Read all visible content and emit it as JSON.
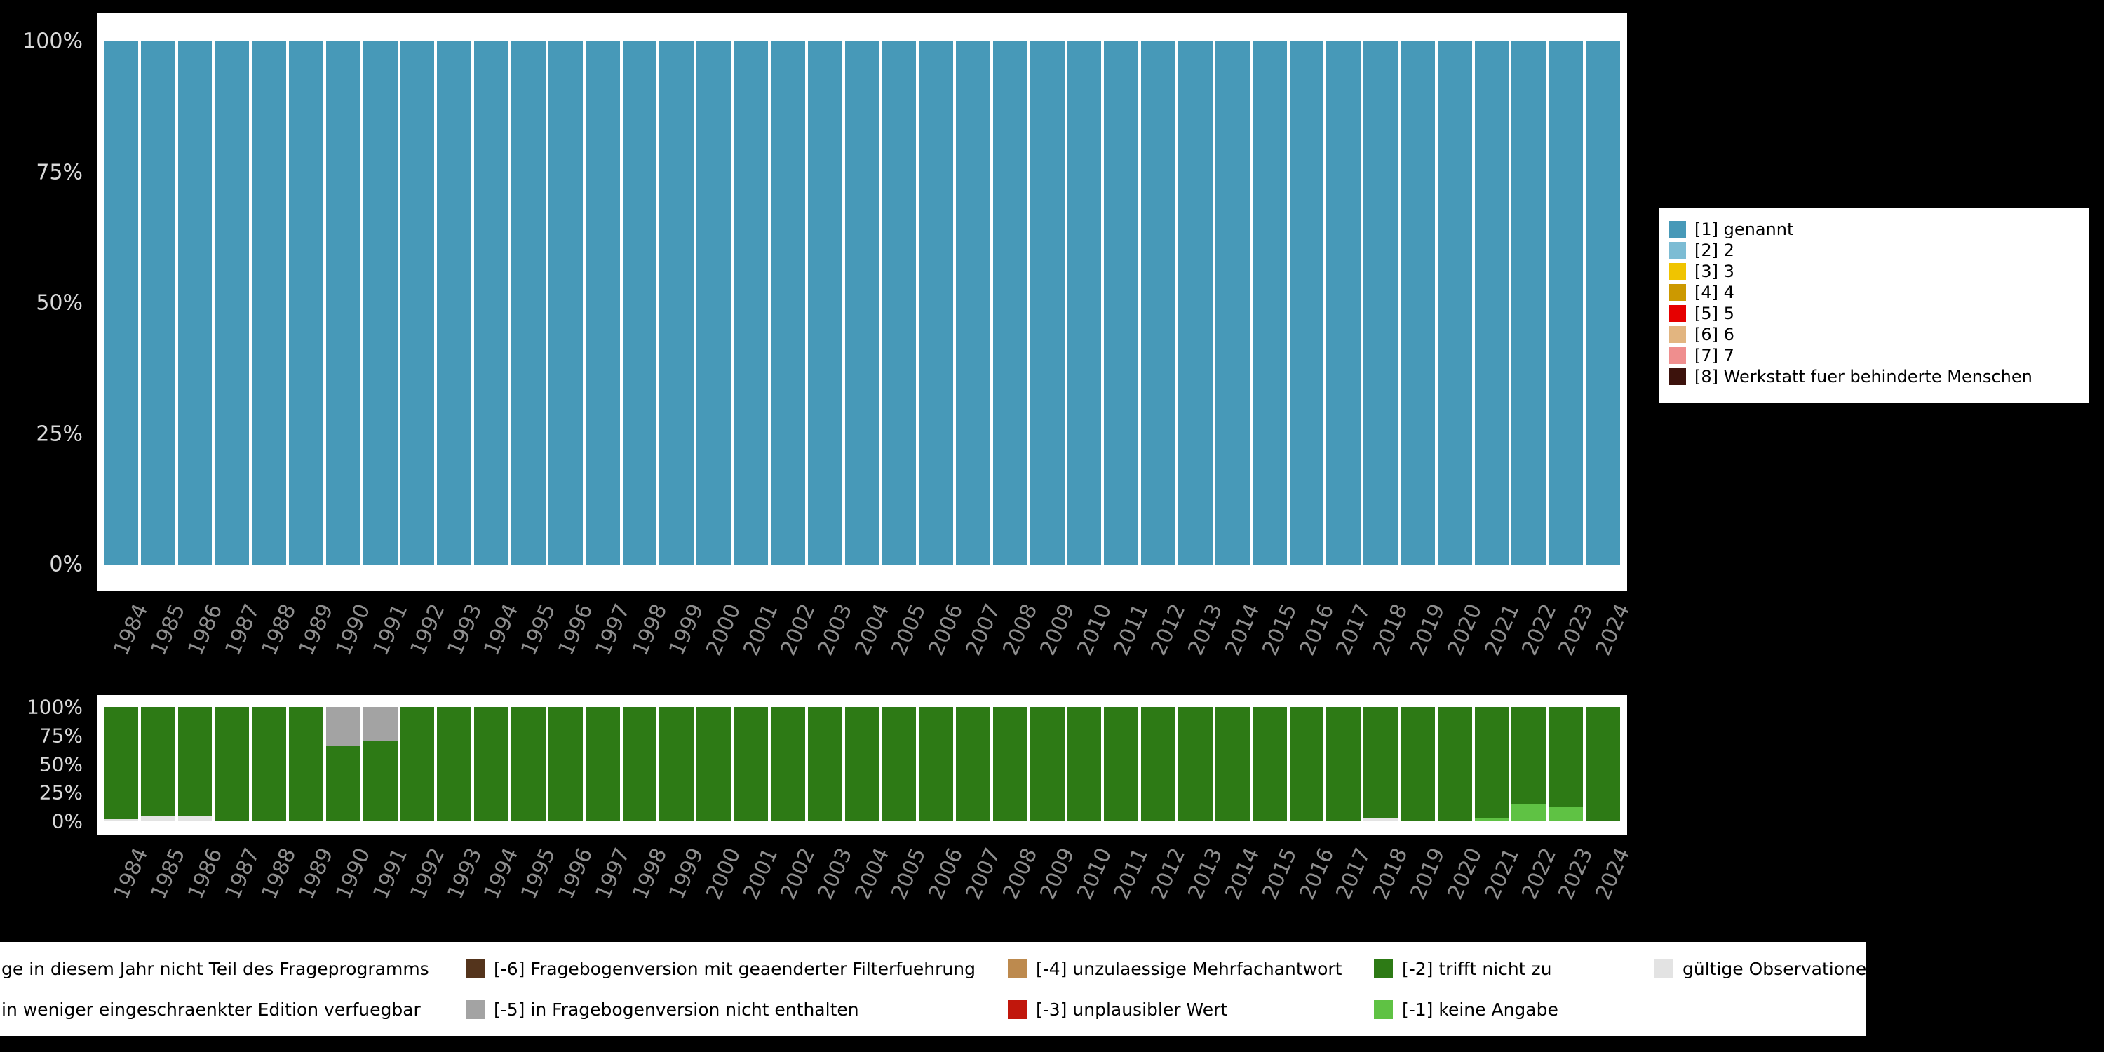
{
  "page": {
    "background": "#000000",
    "panel_background": "#ffffff"
  },
  "colors": {
    "s1": "#4799b8",
    "s2": "#7cbcd4",
    "s3": "#f0c400",
    "s4": "#cc9900",
    "s5": "#e60000",
    "s6": "#e2b580",
    "s7": "#ef8e8e",
    "s8": "#3c120c",
    "m1": "#5fc244",
    "m2": "#2d7a15",
    "m3": "#c1170c",
    "m4": "#bd8a4e",
    "m5": "#a3a3a3",
    "m6": "#54341c",
    "valid": "#e3e3e3",
    "y_axis_text": "#d9d9d9",
    "x_axis_text": "#8f8f8f"
  },
  "chart_data": [
    {
      "type": "bar",
      "stacked": true,
      "title": "",
      "xlabel": "",
      "ylabel": "",
      "ylim": [
        0,
        100
      ],
      "grid": false,
      "legend_position": "right",
      "y_ticks": [
        "100%",
        "75%",
        "50%",
        "25%",
        "0%"
      ],
      "categories": [
        "1984",
        "1985",
        "1986",
        "1987",
        "1988",
        "1989",
        "1990",
        "1991",
        "1992",
        "1993",
        "1994",
        "1995",
        "1996",
        "1997",
        "1998",
        "1999",
        "2000",
        "2001",
        "2002",
        "2003",
        "2004",
        "2005",
        "2006",
        "2007",
        "2008",
        "2009",
        "2010",
        "2011",
        "2012",
        "2013",
        "2014",
        "2015",
        "2016",
        "2017",
        "2018",
        "2019",
        "2020",
        "2021",
        "2022",
        "2023",
        "2024"
      ],
      "series": [
        {
          "name": "[1] genannt",
          "color_key": "s1",
          "values": [
            100,
            100,
            100,
            100,
            100,
            100,
            100,
            100,
            100,
            100,
            100,
            100,
            100,
            100,
            100,
            100,
            100,
            100,
            100,
            100,
            100,
            100,
            100,
            100,
            100,
            100,
            100,
            100,
            100,
            100,
            100,
            100,
            100,
            100,
            100,
            100,
            100,
            100,
            100,
            100,
            100
          ]
        }
      ],
      "legend": [
        {
          "label": "[1] genannt",
          "color_key": "s1"
        },
        {
          "label": "[2] 2",
          "color_key": "s2"
        },
        {
          "label": "[3] 3",
          "color_key": "s3"
        },
        {
          "label": "[4] 4",
          "color_key": "s4"
        },
        {
          "label": "[5] 5",
          "color_key": "s5"
        },
        {
          "label": "[6] 6",
          "color_key": "s6"
        },
        {
          "label": "[7] 7",
          "color_key": "s7"
        },
        {
          "label": "[8] Werkstatt fuer behinderte Menschen",
          "color_key": "s8"
        }
      ]
    },
    {
      "type": "bar",
      "stacked": true,
      "title": "",
      "xlabel": "",
      "ylabel": "",
      "ylim": [
        0,
        100
      ],
      "grid": false,
      "y_ticks": [
        "100%",
        "75%",
        "50%",
        "25%",
        "0%"
      ],
      "categories": [
        "1984",
        "1985",
        "1986",
        "1987",
        "1988",
        "1989",
        "1990",
        "1991",
        "1992",
        "1993",
        "1994",
        "1995",
        "1996",
        "1997",
        "1998",
        "1999",
        "2000",
        "2001",
        "2002",
        "2003",
        "2004",
        "2005",
        "2006",
        "2007",
        "2008",
        "2009",
        "2010",
        "2011",
        "2012",
        "2013",
        "2014",
        "2015",
        "2016",
        "2017",
        "2018",
        "2019",
        "2020",
        "2021",
        "2022",
        "2023",
        "2024"
      ],
      "series": [
        {
          "name": "gültige Observationen",
          "color_key": "valid",
          "values": [
            2,
            5,
            4,
            0,
            0,
            0,
            0,
            0,
            0,
            0,
            0,
            0,
            0,
            0,
            0,
            0,
            0,
            0,
            0,
            0,
            0,
            0,
            0,
            0,
            0,
            0,
            0,
            0,
            0,
            0,
            0,
            0,
            0,
            0,
            3,
            0,
            0,
            0,
            0,
            0,
            0
          ]
        },
        {
          "name": "[-1] keine Angabe",
          "color_key": "m1",
          "values": [
            0,
            0,
            0,
            0,
            0,
            0,
            0,
            0,
            0,
            0,
            0,
            0,
            0,
            0,
            0,
            0,
            0,
            0,
            0,
            0,
            0,
            0,
            0,
            0,
            0,
            0,
            0,
            0,
            0,
            0,
            0,
            0,
            0,
            0,
            0,
            0,
            0,
            3,
            15,
            12,
            0
          ]
        },
        {
          "name": "[-2] trifft nicht zu",
          "color_key": "m2",
          "values": [
            98,
            95,
            96,
            100,
            100,
            100,
            66,
            70,
            100,
            100,
            100,
            100,
            100,
            100,
            100,
            100,
            100,
            100,
            100,
            100,
            100,
            100,
            100,
            100,
            100,
            100,
            100,
            100,
            100,
            100,
            100,
            100,
            100,
            100,
            97,
            100,
            100,
            97,
            85,
            88,
            100
          ]
        },
        {
          "name": "[-5] in Fragebogenversion nicht enthalten",
          "color_key": "m5",
          "values": [
            0,
            0,
            0,
            0,
            0,
            0,
            34,
            30,
            0,
            0,
            0,
            0,
            0,
            0,
            0,
            0,
            0,
            0,
            0,
            0,
            0,
            0,
            0,
            0,
            0,
            0,
            0,
            0,
            0,
            0,
            0,
            0,
            0,
            0,
            0,
            0,
            0,
            0,
            0,
            0,
            0
          ]
        }
      ]
    }
  ],
  "missing_legend": {
    "rows": [
      [
        {
          "label": "ge in diesem Jahr nicht Teil des Frageprogramms",
          "color_key": null
        },
        {
          "label": "[-6] Fragebogenversion mit geaenderter Filterfuehrung",
          "color_key": "m6"
        },
        {
          "label": "[-4] unzulaessige Mehrfachantwort",
          "color_key": "m4"
        },
        {
          "label": "[-2] trifft nicht zu",
          "color_key": "m2"
        },
        {
          "label": "gültige Observationen",
          "color_key": "valid"
        }
      ],
      [
        {
          "label": "in weniger eingeschraenkter Edition verfuegbar",
          "color_key": null
        },
        {
          "label": "[-5] in Fragebogenversion nicht enthalten",
          "color_key": "m5"
        },
        {
          "label": "[-3] unplausibler Wert",
          "color_key": "m3"
        },
        {
          "label": "[-1] keine Angabe",
          "color_key": "m1"
        }
      ]
    ]
  }
}
